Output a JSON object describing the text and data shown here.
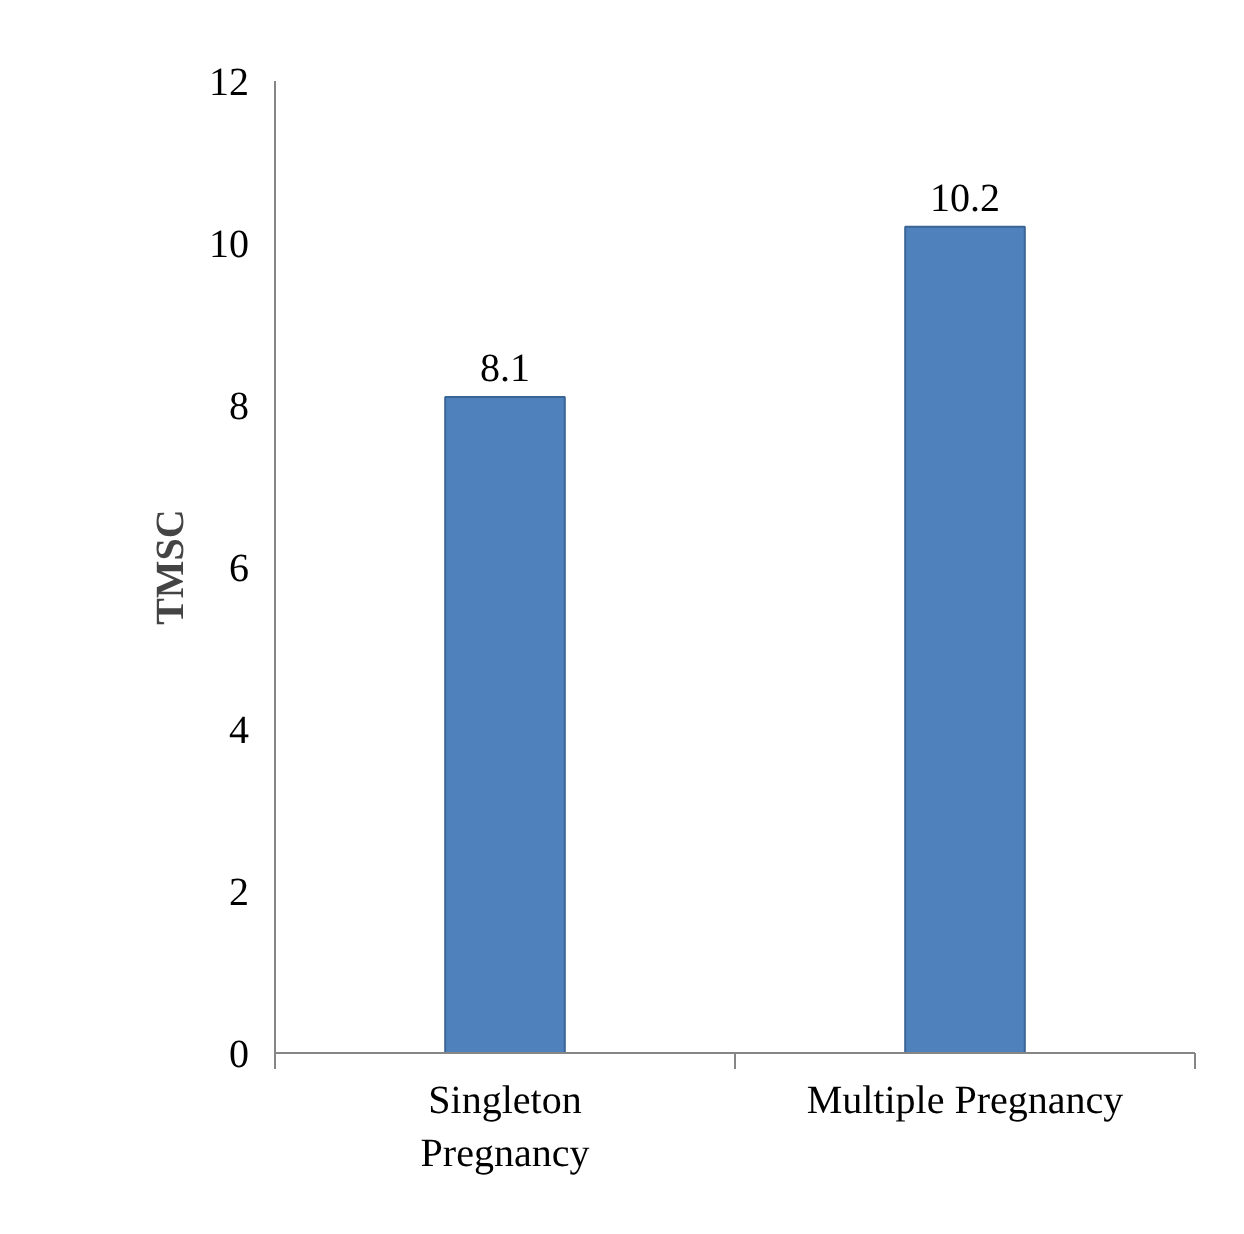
{
  "chart_data": {
    "type": "bar",
    "ylabel": "TMSC",
    "categories": [
      "Singleton Pregnancy",
      "Multiple Pregnancy"
    ],
    "values": [
      8.1,
      10.2
    ],
    "color": "#4f81bd",
    "ylim": [
      0,
      12
    ],
    "yticks": [
      0,
      2,
      4,
      6,
      8,
      10,
      12
    ],
    "data_labels": true,
    "grid": false
  }
}
